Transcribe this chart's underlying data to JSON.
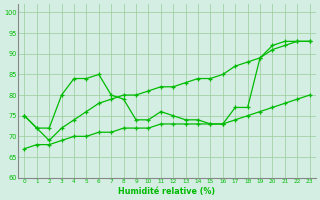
{
  "x": [
    0,
    1,
    2,
    3,
    4,
    5,
    6,
    7,
    8,
    9,
    10,
    11,
    12,
    13,
    14,
    15,
    16,
    17,
    18,
    19,
    20,
    21,
    22,
    23
  ],
  "line_zigzag": [
    75,
    72,
    72,
    80,
    84,
    84,
    85,
    80,
    79,
    74,
    74,
    76,
    75,
    74,
    74,
    73,
    73,
    77,
    77,
    89,
    92,
    93,
    93,
    93
  ],
  "line_trend": [
    75,
    72,
    69,
    72,
    74,
    76,
    78,
    79,
    80,
    80,
    81,
    82,
    82,
    83,
    84,
    84,
    85,
    87,
    88,
    89,
    91,
    92,
    93,
    93
  ],
  "line_low": [
    67,
    68,
    68,
    69,
    70,
    70,
    71,
    71,
    72,
    72,
    72,
    73,
    73,
    73,
    73,
    73,
    73,
    74,
    75,
    76,
    77,
    78,
    79,
    80
  ],
  "line_color": "#00bb00",
  "bg_color": "#d4eee4",
  "grid_color": "#99cc99",
  "xlabel": "Humidité relative (%)",
  "ylim": [
    60,
    102
  ],
  "xlim": [
    -0.5,
    23.5
  ],
  "yticks": [
    60,
    65,
    70,
    75,
    80,
    85,
    90,
    95,
    100
  ]
}
